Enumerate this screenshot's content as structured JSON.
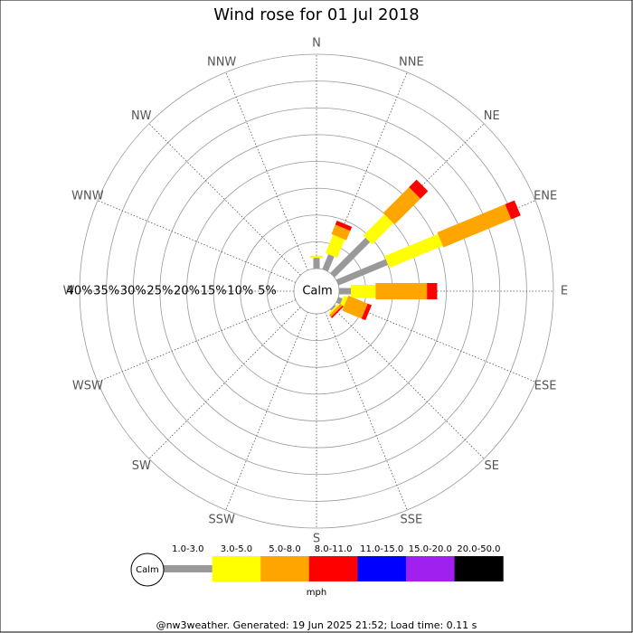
{
  "chart_data": {
    "type": "windrose",
    "title": "Wind rose for 01 Jul 2018",
    "calm_label": "Calm",
    "directions": [
      "N",
      "NNE",
      "NE",
      "ENE",
      "E",
      "ESE",
      "SE",
      "SSE",
      "S",
      "SSW",
      "SW",
      "WSW",
      "W",
      "WNW",
      "NW",
      "NNW"
    ],
    "rlim": [
      0,
      40
    ],
    "rticks": [
      {
        "value": 5,
        "label": " 5%"
      },
      {
        "value": 10,
        "label": "10%"
      },
      {
        "value": 15,
        "label": "15%"
      },
      {
        "value": 20,
        "label": "20%"
      },
      {
        "value": 25,
        "label": "25%"
      },
      {
        "value": 30,
        "label": "30%"
      },
      {
        "value": 35,
        "label": "35%"
      },
      {
        "value": 40,
        "label": "40%"
      }
    ],
    "legend_title": "mph",
    "series": [
      {
        "name": "1.0-3.0",
        "color": "#999999",
        "values": [
          2,
          3,
          9.3,
          10,
          2.2,
          0.8,
          0.3,
          0,
          0,
          0,
          0,
          0,
          0,
          0,
          0,
          0
        ]
      },
      {
        "name": "3.0-5.0",
        "color": "#ffff00",
        "values": [
          0.4,
          3.7,
          5.6,
          10.8,
          4.6,
          0.8,
          0.3,
          0,
          0,
          0,
          0,
          0,
          0,
          0,
          0,
          0
        ]
      },
      {
        "name": "5.0-8.0",
        "color": "#ffa500",
        "values": [
          0,
          1.9,
          6.8,
          13.7,
          9.6,
          3.9,
          0.5,
          0,
          0,
          0,
          0,
          0,
          0,
          0,
          0,
          0
        ]
      },
      {
        "name": "8.0-11.0",
        "color": "#ff0000",
        "values": [
          0,
          0.8,
          2,
          1.9,
          1.9,
          0.8,
          0.3,
          0,
          0,
          0,
          0,
          0,
          0,
          0,
          0,
          0
        ]
      },
      {
        "name": "11.0-15.0",
        "color": "#0000ff",
        "values": [
          0,
          0,
          0,
          0,
          0,
          0,
          0,
          0,
          0,
          0,
          0,
          0,
          0,
          0,
          0,
          0
        ]
      },
      {
        "name": "15.0-20.0",
        "color": "#a020f0",
        "values": [
          0,
          0,
          0,
          0,
          0,
          0,
          0,
          0,
          0,
          0,
          0,
          0,
          0,
          0,
          0,
          0
        ]
      },
      {
        "name": "20.0-50.0",
        "color": "#000000",
        "values": [
          0,
          0,
          0,
          0,
          0,
          0,
          0,
          0,
          0,
          0,
          0,
          0,
          0,
          0,
          0,
          0
        ]
      }
    ],
    "footer": "@nw3weather. Generated: 19 Jun 2025 21:52; Load time: 0.11 s"
  }
}
